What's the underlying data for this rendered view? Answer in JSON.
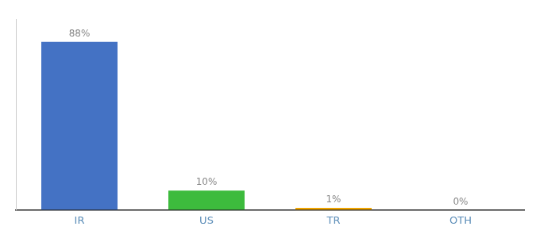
{
  "chart_data": {
    "type": "bar",
    "categories": [
      "IR",
      "US",
      "TR",
      "OTH"
    ],
    "values": [
      88,
      10,
      1,
      0
    ],
    "value_labels": [
      "88%",
      "10%",
      "1%",
      "0%"
    ],
    "colors": [
      "#4472c4",
      "#3dbb3d",
      "#f0a500",
      "#f0a500"
    ],
    "ylim": [
      0,
      100
    ],
    "grid": false,
    "data_labels": true,
    "tick_labels": "x"
  }
}
